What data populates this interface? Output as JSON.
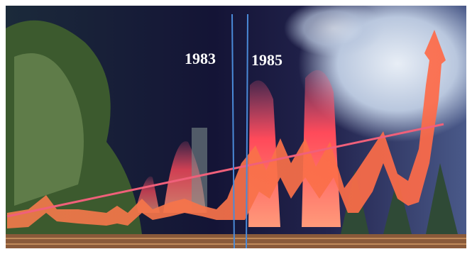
{
  "annotations": [
    {
      "label": "1983"
    },
    {
      "label": "1985"
    }
  ]
}
